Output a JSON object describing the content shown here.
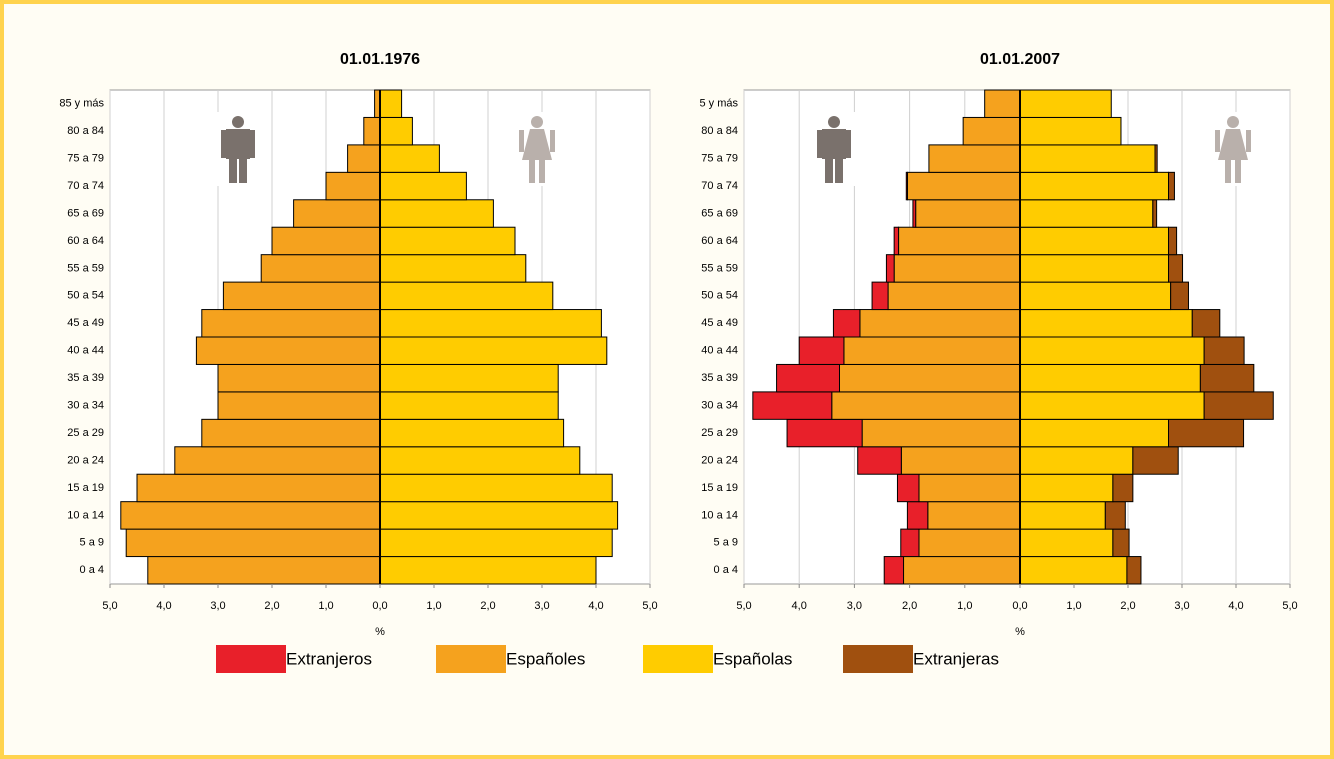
{
  "chart_data": [
    {
      "type": "pyramid",
      "title": "01.01.1976",
      "xlabel": "%",
      "grid": true,
      "categories": [
        "0 a 4",
        "5 a 9",
        "10 a 14",
        "15 a 19",
        "20 a 24",
        "25 a 29",
        "30 a 34",
        "35 a 39",
        "40 a 44",
        "45 a 49",
        "50 a 54",
        "55 a 59",
        "60 a 64",
        "65 a 69",
        "70 a 74",
        "75 a 79",
        "80 a 84",
        "85 y más"
      ],
      "xlim": [
        0,
        5
      ],
      "xticks": [
        {
          "value": 0,
          "label": "0,0"
        },
        {
          "value": 1,
          "label": "1,0"
        },
        {
          "value": 2,
          "label": "2,0"
        },
        {
          "value": 3,
          "label": "3,0"
        },
        {
          "value": 4,
          "label": "4,0"
        },
        {
          "value": 5,
          "label": "5,0"
        }
      ],
      "series": [
        {
          "color": "#f5a21e",
          "side": "left",
          "values": [
            4.3,
            4.7,
            4.8,
            4.5,
            3.8,
            3.3,
            3.0,
            3.0,
            3.4,
            3.3,
            2.9,
            2.2,
            2.0,
            1.6,
            1.0,
            0.6,
            0.3,
            0.1
          ]
        },
        {
          "color": "#ffcc00",
          "side": "right",
          "values": [
            4.0,
            4.3,
            4.4,
            4.3,
            3.7,
            3.4,
            3.3,
            3.3,
            4.2,
            4.1,
            3.2,
            2.7,
            2.5,
            2.1,
            1.6,
            1.1,
            0.6,
            0.4
          ]
        }
      ]
    },
    {
      "type": "pyramid",
      "title": "01.01.2007",
      "xlabel": "%",
      "grid": true,
      "categories": [
        "0 a 4",
        "5 a 9",
        "10 a 14",
        "15 a 19",
        "20 a 24",
        "25 a 29",
        "30 a 34",
        "35 a 39",
        "40 a 44",
        "45 a 49",
        "50 a 54",
        "55 a 59",
        "60 a 64",
        "65 a 69",
        "70 a 74",
        "75 a 79",
        "80 a 84",
        "5 y más"
      ],
      "xlim": [
        0,
        5
      ],
      "xticks": [
        {
          "value": 0,
          "label": "0,0"
        },
        {
          "value": 1,
          "label": "1,0"
        },
        {
          "value": 2,
          "label": "2,0"
        },
        {
          "value": 3,
          "label": "3,0"
        },
        {
          "value": 4,
          "label": "4,0"
        },
        {
          "value": 5,
          "label": "5,0"
        }
      ],
      "series": [
        {
          "name": "Extranjeros",
          "color": "#e8202a",
          "side": "left",
          "values": [
            0.35,
            0.33,
            0.37,
            0.39,
            0.79,
            1.36,
            1.43,
            1.14,
            0.81,
            0.48,
            0.29,
            0.14,
            0.08,
            0.05,
            0.02,
            0,
            0,
            0
          ]
        },
        {
          "name": "Españoles",
          "color": "#f5a21e",
          "side": "left",
          "values": [
            2.11,
            1.83,
            1.67,
            1.83,
            2.15,
            2.86,
            3.41,
            3.27,
            3.19,
            2.9,
            2.39,
            2.28,
            2.2,
            1.89,
            2.04,
            1.65,
            1.03,
            0.64
          ]
        },
        {
          "name": "Españolas",
          "color": "#ffcc00",
          "side": "right",
          "values": [
            1.98,
            1.72,
            1.58,
            1.72,
            2.09,
            2.75,
            3.41,
            3.34,
            3.41,
            3.19,
            2.79,
            2.75,
            2.75,
            2.46,
            2.75,
            2.5,
            1.87,
            1.69
          ]
        },
        {
          "name": "Extranjeras",
          "color": "#a0500f",
          "side": "right",
          "values": [
            0.26,
            0.3,
            0.37,
            0.37,
            0.84,
            1.39,
            1.28,
            0.99,
            0.74,
            0.51,
            0.33,
            0.26,
            0.15,
            0.07,
            0.11,
            0.04,
            0,
            0
          ]
        }
      ]
    }
  ]
}
